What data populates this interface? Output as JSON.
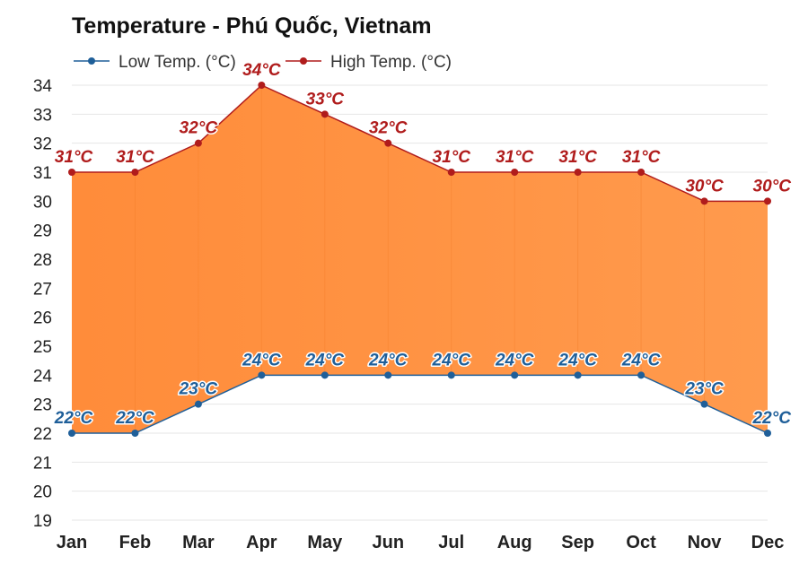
{
  "chart_data": {
    "type": "area",
    "title": "Temperature - Phú Quốc, Vietnam",
    "categories": [
      "Jan",
      "Feb",
      "Mar",
      "Apr",
      "May",
      "Jun",
      "Jul",
      "Aug",
      "Sep",
      "Oct",
      "Nov",
      "Dec"
    ],
    "series": [
      {
        "name": "Low Temp. (°C)",
        "values": [
          22,
          22,
          23,
          24,
          24,
          24,
          24,
          24,
          24,
          24,
          23,
          22
        ],
        "labels": [
          "22°C",
          "22°C",
          "23°C",
          "24°C",
          "24°C",
          "24°C",
          "24°C",
          "24°C",
          "24°C",
          "24°C",
          "23°C",
          "22°C"
        ],
        "color": "#1f5f99"
      },
      {
        "name": "High Temp. (°C)",
        "values": [
          31,
          31,
          32,
          34,
          33,
          32,
          31,
          31,
          31,
          31,
          30,
          30
        ],
        "labels": [
          "31°C",
          "31°C",
          "32°C",
          "34°C",
          "33°C",
          "32°C",
          "31°C",
          "31°C",
          "31°C",
          "31°C",
          "30°C",
          "30°C"
        ],
        "color": "#b01c1c"
      }
    ],
    "fill_color": "#ff8c3a",
    "ylim": [
      19,
      34
    ],
    "yticks": [
      "19",
      "20",
      "21",
      "22",
      "23",
      "24",
      "25",
      "26",
      "27",
      "28",
      "29",
      "30",
      "31",
      "32",
      "33",
      "34"
    ],
    "grid": true,
    "legend_position": "top-left"
  }
}
